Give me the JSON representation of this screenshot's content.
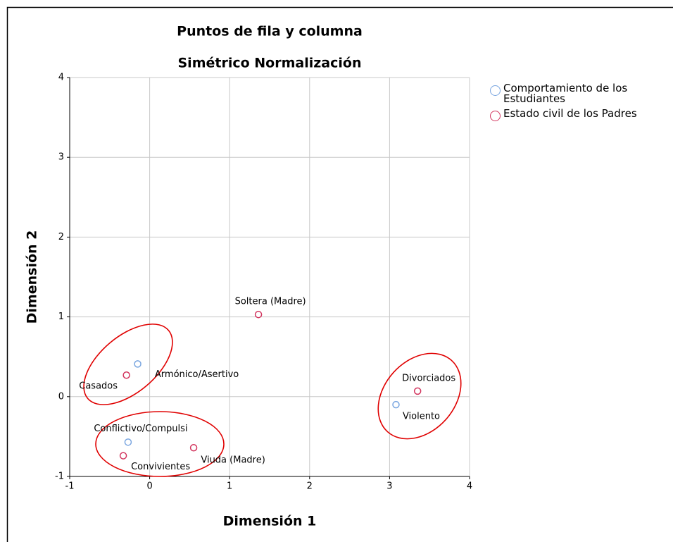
{
  "chart_data": {
    "type": "scatter",
    "title": "Puntos de fila y columna",
    "subtitle": "Simétrico Normalización",
    "x_label": "Dimensión 1",
    "y_label": "Dimensión 2",
    "series": [
      {
        "name": "Comportamiento de los Estudiantes",
        "color": "#7aa6e0",
        "labels": [
          "Armónico/Asertivo",
          "Conflictivo/Compulsi",
          "Violento"
        ],
        "x": [
          -0.15,
          -0.27,
          3.08
        ],
        "values": [
          0.41,
          -0.57,
          -0.1
        ]
      },
      {
        "name": "Estado civil de los Padres",
        "color": "#d2355e",
        "labels": [
          "Soltera (Madre)",
          "Casados",
          "Divorciados",
          "Convivientes",
          "Viuda (Madre)"
        ],
        "x": [
          1.36,
          -0.29,
          3.35,
          -0.33,
          0.55
        ],
        "values": [
          1.03,
          0.27,
          0.07,
          -0.74,
          -0.64
        ]
      }
    ],
    "xlim": [
      -1,
      4
    ],
    "xticks": [
      -1,
      0,
      1,
      2,
      3,
      4
    ],
    "ylim": [
      -1,
      4
    ],
    "yticks": [
      -1,
      0,
      1,
      2,
      3,
      4
    ],
    "grid": true,
    "legend": "right"
  }
}
